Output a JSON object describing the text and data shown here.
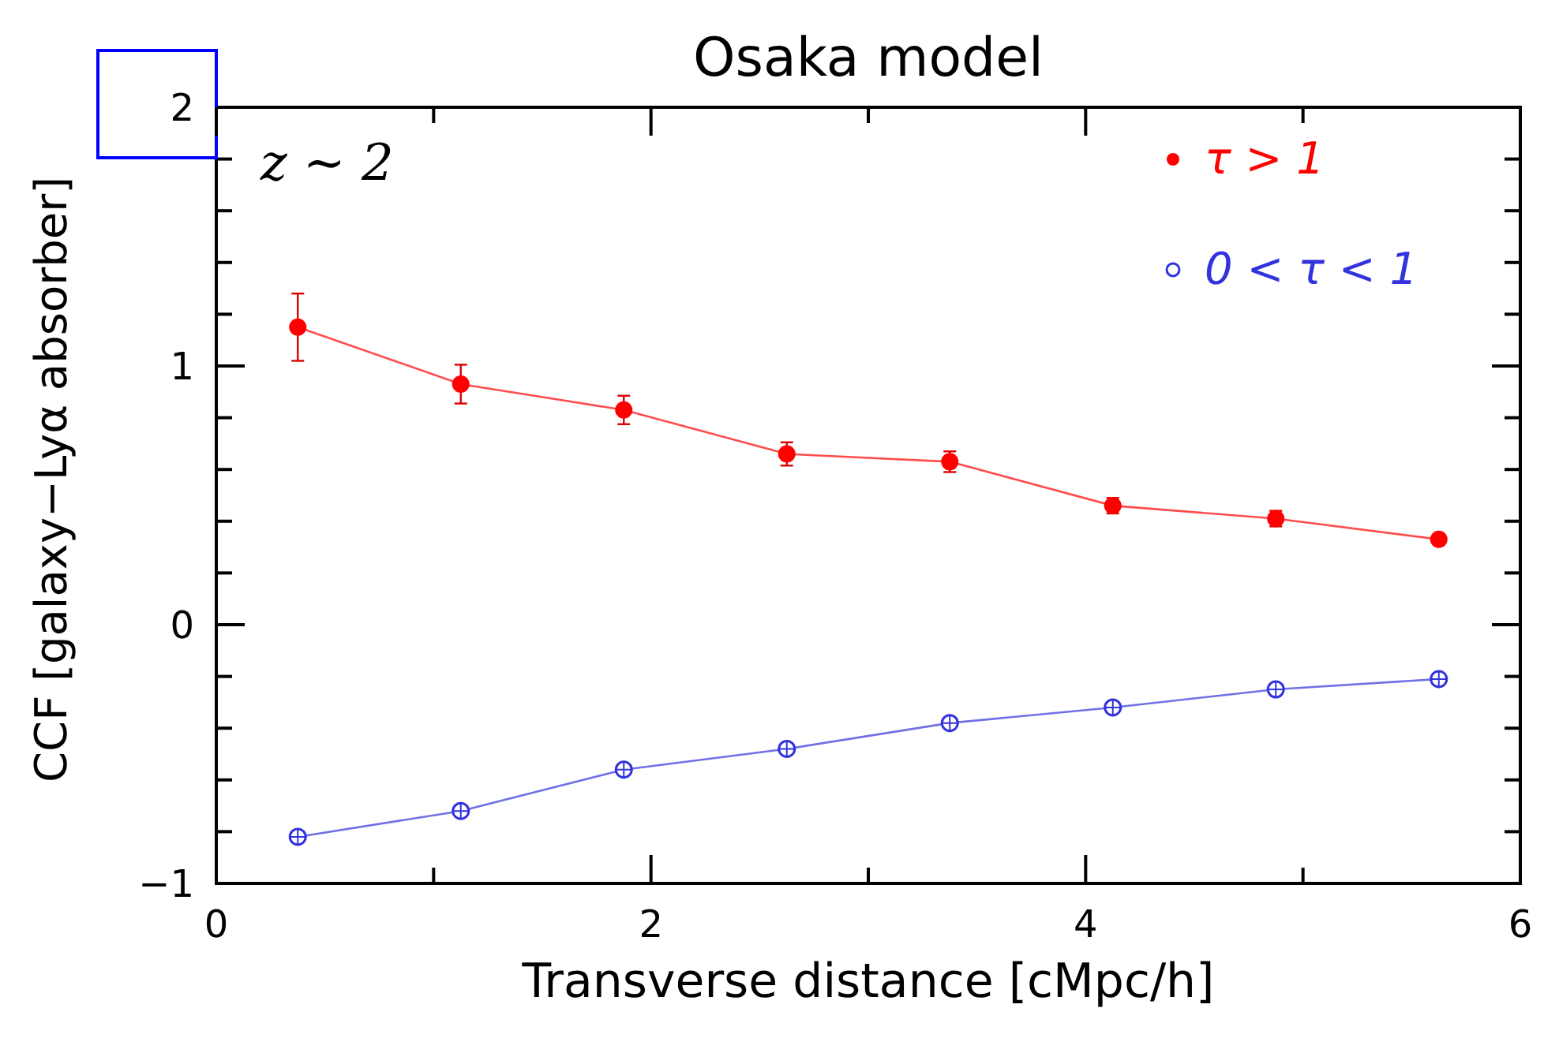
{
  "chart_data": {
    "type": "line",
    "title": "Osaka model",
    "xlabel": "Transverse distance [cMpc/h]",
    "ylabel": "CCF [galaxy−Lyα absorber]",
    "annotations": [
      "z ~ 2"
    ],
    "x": [
      0.375,
      1.125,
      1.875,
      2.625,
      3.375,
      4.125,
      4.875,
      5.625
    ],
    "series": [
      {
        "name": "τ > 1",
        "color": "#ff0000",
        "values": [
          1.15,
          0.93,
          0.83,
          0.66,
          0.63,
          0.46,
          0.41,
          0.33
        ],
        "errors": [
          0.13,
          0.075,
          0.055,
          0.045,
          0.04,
          0.03,
          0.03,
          0.02
        ]
      },
      {
        "name": "0 < τ < 1",
        "color": "#3333dd",
        "values": [
          -0.82,
          -0.72,
          -0.56,
          -0.48,
          -0.38,
          -0.32,
          -0.25,
          -0.21
        ]
      }
    ],
    "xlim": [
      0,
      6
    ],
    "xticks": [
      0,
      {
        "value": 1,
        "label": null
      },
      2,
      {
        "value": 3,
        "label": null
      },
      4,
      {
        "value": 5,
        "label": null
      },
      6
    ],
    "ylim": [
      -1,
      2
    ],
    "yticks": [
      -1,
      0,
      1,
      2
    ],
    "marker": "circle",
    "line_style": "solid",
    "legend": "top right",
    "grid": false
  }
}
